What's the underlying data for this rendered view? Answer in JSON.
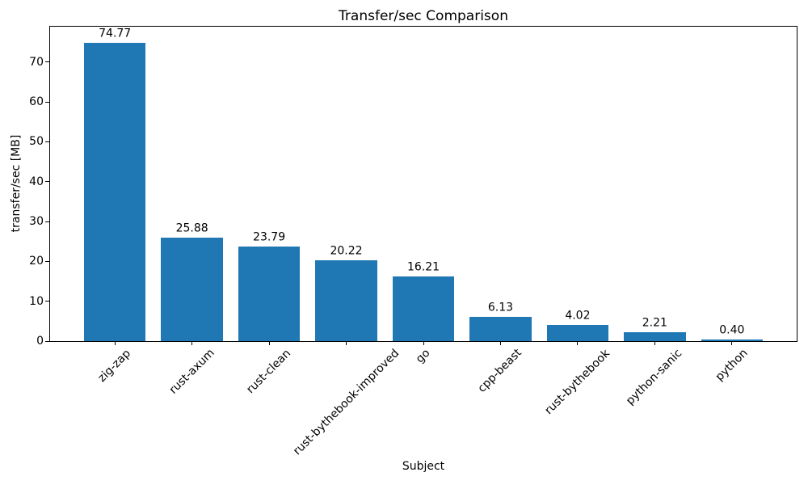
{
  "chart_data": {
    "type": "bar",
    "title": "Transfer/sec Comparison",
    "xlabel": "Subject",
    "ylabel": "transfer/sec [MB]",
    "categories": [
      "zig-zap",
      "rust-axum",
      "rust-clean",
      "rust-bythebook-improved",
      "go",
      "cpp-beast",
      "rust-bythebook",
      "python-sanic",
      "python"
    ],
    "values": [
      74.77,
      25.88,
      23.79,
      20.22,
      16.21,
      6.13,
      4.02,
      2.21,
      0.4
    ],
    "bar_labels": [
      "74.77",
      "25.88",
      "23.79",
      "20.22",
      "16.21",
      "6.13",
      "4.02",
      "2.21",
      "0.40"
    ],
    "yticks": [
      0,
      10,
      20,
      30,
      40,
      50,
      60,
      70
    ],
    "ylim": [
      0,
      78.9
    ],
    "grid": false,
    "legend": null,
    "colors": {
      "bar": "#1f77b4",
      "spine": "#000000",
      "text": "#000000",
      "background": "#ffffff"
    },
    "x_tick_rotation_deg": 45,
    "bar_width_fraction": 0.8,
    "x_margin_units": 0.84
  }
}
